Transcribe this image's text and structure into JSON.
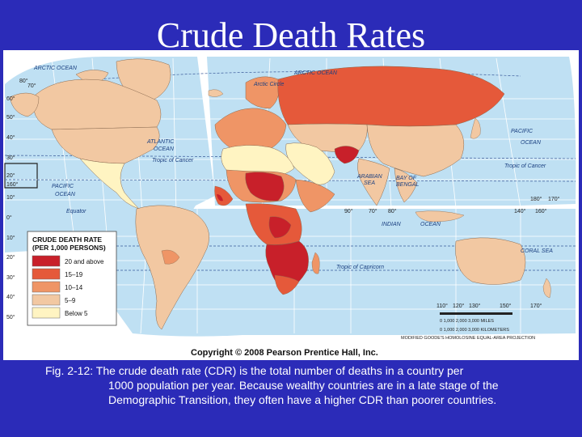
{
  "title": "Crude Death Rates",
  "legend": {
    "title_line1": "CRUDE DEATH RATE",
    "title_line2": "(PER 1,000 PERSONS)",
    "items": [
      {
        "label": "20 and above",
        "color": "#c8202a"
      },
      {
        "label": "15–19",
        "color": "#e5593a"
      },
      {
        "label": "10–14",
        "color": "#ef9566"
      },
      {
        "label": "5–9",
        "color": "#f2c8a2"
      },
      {
        "label": "Below 5",
        "color": "#fff4c2"
      }
    ]
  },
  "map_labels": {
    "arctic_ocean_1": "ARCTIC OCEAN",
    "arctic_ocean_2": "ARCTIC OCEAN",
    "arctic_circle": "Arctic Circle",
    "atlantic_1": "ATLANTIC",
    "atlantic_2": "OCEAN",
    "pacific_w1": "PACIFIC",
    "pacific_w2": "OCEAN",
    "pacific_e1": "PACIFIC",
    "pacific_e2": "OCEAN",
    "tropic_cancer_1": "Tropic of Cancer",
    "tropic_cancer_2": "Tropic of Cancer",
    "equator": "Equator",
    "tropic_capricorn": "Tropic of Capricorn",
    "arabian_sea_1": "ARABIAN",
    "arabian_sea_2": "SEA",
    "bay_bengal_1": "BAY OF",
    "bay_bengal_2": "BENGAL",
    "indian_ocean_1": "INDIAN",
    "indian_ocean_2": "OCEAN",
    "coral_sea": "CORAL SEA"
  },
  "scale": {
    "miles": "0     1,000     2,000     3,000 MILES",
    "km": "0   1,000  2,000  3,000 KILOMETERS",
    "projection": "MODIFIED GOODE'S HOMOLOSINE EQUAL-AREA PROJECTION"
  },
  "copyright": "Copyright © 2008 Pearson Prentice Hall, Inc.",
  "caption": {
    "line1": "Fig. 2-12:  The crude death rate (CDR) is the total number of deaths in a country per",
    "rest": "1000 population per year.  Because wealthy countries are in a late stage of the Demographic Transition, they often have a higher CDR than poorer countries."
  },
  "degree_labels": {
    "d80": "80°",
    "d70": "70°",
    "d60": "60°",
    "d50": "50°",
    "d40": "40°",
    "d30": "30°",
    "d20": "20°",
    "d10": "10°",
    "d0": "0°",
    "dm10": "10°",
    "dm20": "20°",
    "dm30": "30°",
    "dm40": "40°",
    "dm50": "50°",
    "l160": "160°",
    "l90": "90°",
    "l80": "80°",
    "l70": "70°",
    "l140": "140°",
    "l160e": "160°",
    "l110": "110°",
    "l120": "120°",
    "l130": "130°",
    "l150": "150°",
    "l170": "170°",
    "l180": "180°",
    "l170b": "170°"
  }
}
